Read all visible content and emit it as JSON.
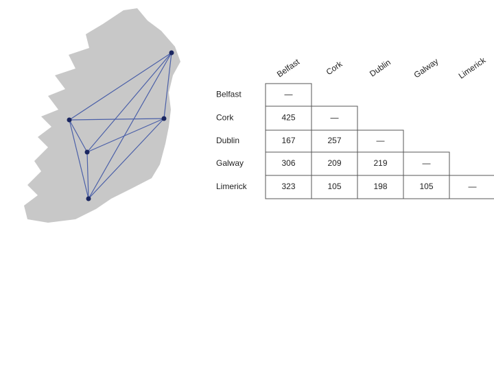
{
  "table": {
    "columns": [
      "Belfast",
      "Cork",
      "Dublin",
      "Galway",
      "Limerick"
    ],
    "rows": [
      {
        "label": "Belfast",
        "cells": [
          "—"
        ]
      },
      {
        "label": "Cork",
        "cells": [
          425,
          "—"
        ]
      },
      {
        "label": "Dublin",
        "cells": [
          167,
          257,
          "—"
        ]
      },
      {
        "label": "Galway",
        "cells": [
          306,
          209,
          219,
          "—"
        ]
      },
      {
        "label": "Limerick",
        "cells": [
          323,
          105,
          198,
          105,
          "—"
        ]
      }
    ]
  }
}
